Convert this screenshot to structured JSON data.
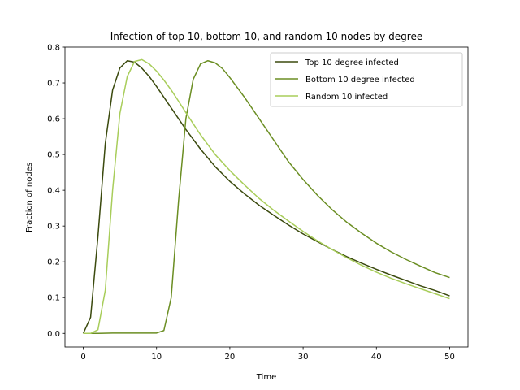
{
  "chart_data": {
    "type": "line",
    "title": "Infection of top 10, bottom 10, and random 10 nodes by degree",
    "xlabel": "Time",
    "ylabel": "Fraction of nodes",
    "xlim": [
      -2.5,
      52.5
    ],
    "ylim": [
      -0.038,
      0.8
    ],
    "xticks": [
      0,
      10,
      20,
      30,
      40,
      50
    ],
    "yticks": [
      0.0,
      0.1,
      0.2,
      0.3,
      0.4,
      0.5,
      0.6,
      0.7,
      0.8
    ],
    "ytick_labels": [
      "0.0",
      "0.1",
      "0.2",
      "0.3",
      "0.4",
      "0.5",
      "0.6",
      "0.7",
      "0.8"
    ],
    "grid": false,
    "legend_position": "upper-right",
    "series": [
      {
        "name": "Top 10 degree infected",
        "color": "#3b4a0e",
        "x": [
          0,
          1,
          2,
          3,
          4,
          5,
          6,
          7,
          8,
          9,
          10,
          12,
          14,
          16,
          18,
          20,
          22,
          24,
          26,
          28,
          30,
          32,
          34,
          36,
          38,
          40,
          42,
          44,
          46,
          48,
          50
        ],
        "y": [
          0.0,
          0.045,
          0.27,
          0.53,
          0.68,
          0.742,
          0.762,
          0.758,
          0.741,
          0.718,
          0.69,
          0.63,
          0.57,
          0.515,
          0.466,
          0.425,
          0.39,
          0.358,
          0.33,
          0.303,
          0.278,
          0.256,
          0.234,
          0.214,
          0.196,
          0.179,
          0.163,
          0.148,
          0.133,
          0.12,
          0.105
        ]
      },
      {
        "name": "Bottom 10 degree infected",
        "color": "#6b8e23",
        "x": [
          0,
          2,
          4,
          6,
          8,
          10,
          11,
          12,
          13,
          14,
          15,
          16,
          17,
          18,
          19,
          20,
          22,
          24,
          26,
          28,
          30,
          32,
          34,
          36,
          38,
          40,
          42,
          44,
          46,
          48,
          50
        ],
        "y": [
          0.0,
          0.0,
          0.001,
          0.001,
          0.001,
          0.001,
          0.008,
          0.1,
          0.37,
          0.6,
          0.71,
          0.753,
          0.762,
          0.756,
          0.74,
          0.715,
          0.66,
          0.6,
          0.54,
          0.48,
          0.43,
          0.385,
          0.345,
          0.31,
          0.28,
          0.252,
          0.228,
          0.207,
          0.188,
          0.17,
          0.156
        ]
      },
      {
        "name": "Random 10 infected",
        "color": "#a8cd5a",
        "x": [
          0,
          1,
          2,
          3,
          4,
          5,
          6,
          7,
          8,
          9,
          10,
          11,
          12,
          13,
          14,
          16,
          18,
          20,
          22,
          24,
          26,
          28,
          30,
          32,
          34,
          36,
          38,
          40,
          42,
          44,
          46,
          48,
          50
        ],
        "y": [
          0.0,
          0.0,
          0.01,
          0.12,
          0.4,
          0.615,
          0.718,
          0.76,
          0.765,
          0.753,
          0.733,
          0.708,
          0.68,
          0.649,
          0.617,
          0.555,
          0.5,
          0.455,
          0.415,
          0.377,
          0.344,
          0.314,
          0.285,
          0.258,
          0.234,
          0.211,
          0.19,
          0.171,
          0.154,
          0.139,
          0.125,
          0.111,
          0.097
        ]
      }
    ]
  }
}
